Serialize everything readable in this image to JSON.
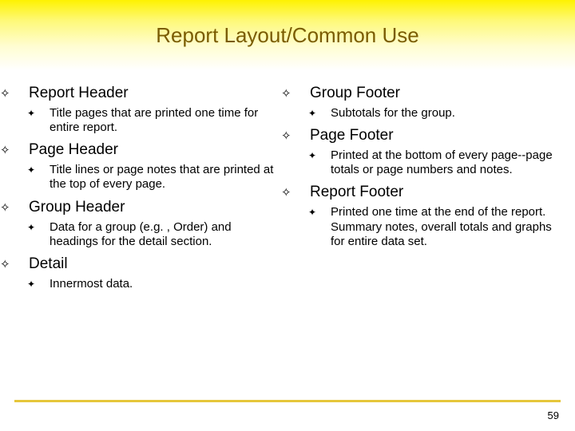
{
  "title": "Report Layout/Common Use",
  "banner_gradient_start": "#fef200",
  "banner_gradient_end": "#ffffff",
  "title_color": "#7a5c00",
  "title_fontsize": 26,
  "section_fontsize": 19,
  "desc_fontsize": 15,
  "bullet_diamond": "✧",
  "bullet_star": "✦",
  "footer_line_color": "#e6c63b",
  "page_number": "59",
  "left": {
    "s1": {
      "h": "Report Header",
      "d": "Title pages that are printed one time for entire report."
    },
    "s2": {
      "h": "Page Header",
      "d": "Title lines or page notes that are printed at the top of every page."
    },
    "s3": {
      "h": "Group Header",
      "d": "Data for a group (e.g. , Order) and headings for the detail section."
    },
    "s4": {
      "h": "Detail",
      "d": "Innermost data."
    }
  },
  "right": {
    "s1": {
      "h": "Group Footer",
      "d": "Subtotals for the group."
    },
    "s2": {
      "h": "Page Footer",
      "d": "Printed at the bottom of every page--page totals or page numbers and notes."
    },
    "s3": {
      "h": "Report Footer",
      "d": "Printed one time at the end of the report.  Summary notes, overall totals and graphs for entire data set."
    }
  }
}
